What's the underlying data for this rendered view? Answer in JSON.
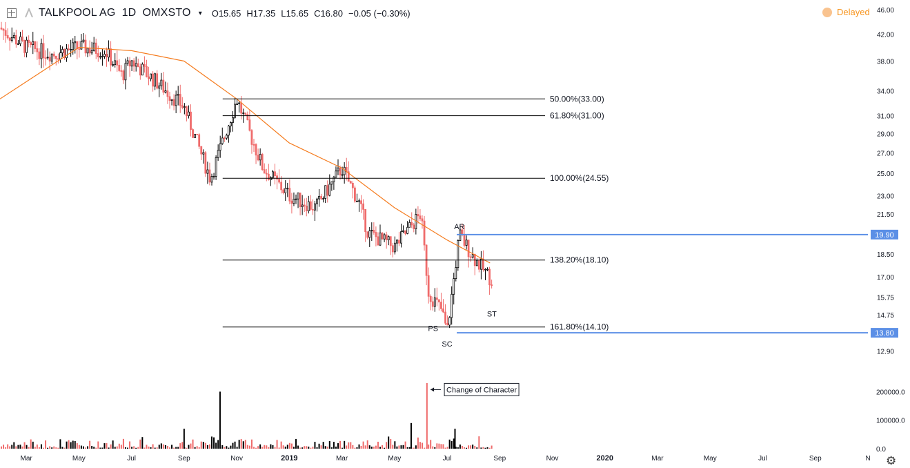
{
  "header": {
    "symbol": "TALKPOOL AG",
    "interval": "1D",
    "exchange": "OMXSTO",
    "open": "O15.65",
    "high": "H17.35",
    "low": "L15.65",
    "close": "C16.80",
    "change": "−0.05 (−0.30%)",
    "delayed_label": "Delayed"
  },
  "icons": {
    "chart_menu": "square-plus-icon",
    "logo": "tradingview-logo-icon",
    "dropdown": "chevron-down-icon",
    "settings": "gear-icon",
    "delayed": "circle-dot-icon"
  },
  "colors": {
    "up": "#000000",
    "down": "#ef6b6b",
    "ma": "#f57c1f",
    "level_line": "#000000",
    "highlight": "#5b8fe6",
    "volume_up": "#000000",
    "volume_down": "#ef6b6b"
  },
  "chart_data": {
    "type": "candlestick",
    "price_axis": {
      "ticks": [
        "46.00",
        "42.00",
        "38.00",
        "34.00",
        "31.00",
        "29.00",
        "27.00",
        "25.00",
        "23.00",
        "21.50",
        "18.50",
        "17.00",
        "15.75",
        "14.75",
        "12.90"
      ],
      "scale": "log"
    },
    "volume_axis": {
      "ticks": [
        "200000.0",
        "100000.0",
        "0.0"
      ]
    },
    "time_axis": {
      "ticks": [
        "Mar",
        "May",
        "Jul",
        "Sep",
        "Nov",
        "2019",
        "Mar",
        "May",
        "Jul",
        "Sep",
        "Nov",
        "2020",
        "Mar",
        "May",
        "Jul",
        "Sep",
        "N"
      ],
      "bold": [
        "2019",
        "2020"
      ]
    },
    "x_range": [
      "2018-02",
      "2020-11"
    ],
    "y_range": [
      12.2,
      46.5
    ],
    "price_path": [
      {
        "date": "2018-02",
        "price": 43.0
      },
      {
        "date": "2018-03",
        "price": 40.0
      },
      {
        "date": "2018-04",
        "price": 39.0
      },
      {
        "date": "2018-05",
        "price": 40.0
      },
      {
        "date": "2018-06",
        "price": 39.5
      },
      {
        "date": "2018-06-20",
        "price": 36.0
      },
      {
        "date": "2018-07",
        "price": 38.0
      },
      {
        "date": "2018-08",
        "price": 35.0
      },
      {
        "date": "2018-09",
        "price": 32.0
      },
      {
        "date": "2018-10",
        "price": 24.5
      },
      {
        "date": "2018-11",
        "price": 33.0
      },
      {
        "date": "2018-12",
        "price": 25.5
      },
      {
        "date": "2019-01",
        "price": 23.0
      },
      {
        "date": "2019-02",
        "price": 22.0
      },
      {
        "date": "2019-03",
        "price": 25.5
      },
      {
        "date": "2019-03-20",
        "price": 22.5
      },
      {
        "date": "2019-04",
        "price": 20.0
      },
      {
        "date": "2019-05",
        "price": 19.0
      },
      {
        "date": "2019-06",
        "price": 21.5
      },
      {
        "date": "2019-06-10",
        "price": 16.0
      },
      {
        "date": "2019-06-25",
        "price": 15.0
      },
      {
        "date": "2019-07",
        "price": 13.8
      },
      {
        "date": "2019-07-15",
        "price": 19.9
      },
      {
        "date": "2019-08",
        "price": 18.3
      },
      {
        "date": "2019-08-22",
        "price": 16.8
      }
    ],
    "moving_average": [
      {
        "date": "2018-02",
        "price": 33.0
      },
      {
        "date": "2018-05",
        "price": 40.0
      },
      {
        "date": "2018-07",
        "price": 39.5
      },
      {
        "date": "2018-09",
        "price": 38.0
      },
      {
        "date": "2018-11",
        "price": 33.0
      },
      {
        "date": "2019-01",
        "price": 28.0
      },
      {
        "date": "2019-03",
        "price": 25.5
      },
      {
        "date": "2019-05",
        "price": 22.0
      },
      {
        "date": "2019-07",
        "price": 19.5
      },
      {
        "date": "2019-08-20",
        "price": 17.9
      }
    ],
    "volume_spikes": [
      {
        "date": "2018-10-12",
        "value": 200000
      },
      {
        "date": "2019-06-08",
        "value": 230000
      },
      {
        "date": "2019-05-20",
        "value": 90000
      },
      {
        "date": "2018-09",
        "value": 70000
      },
      {
        "date": "2019-07-10",
        "value": 70000
      }
    ],
    "fib_levels": [
      {
        "label": "50.00%(33.00)",
        "price": 33.0
      },
      {
        "label": "61.80%(31.00)",
        "price": 31.0
      },
      {
        "label": "100.00%(24.55)",
        "price": 24.55
      },
      {
        "label": "138.20%(18.10)",
        "price": 18.1
      },
      {
        "label": "161.80%(14.10)",
        "price": 14.1
      }
    ],
    "highlight_levels": [
      {
        "label": "19.90",
        "price": 19.9
      },
      {
        "label": "13.80",
        "price": 13.8
      }
    ],
    "annotations": [
      {
        "text": "AR",
        "date": "2019-07-15",
        "price": 19.9
      },
      {
        "text": "PS",
        "date": "2019-06-15",
        "price": 14.4
      },
      {
        "text": "SC",
        "date": "2019-07-01",
        "price": 13.6
      },
      {
        "text": "ST",
        "date": "2019-08-22",
        "price": 15.2
      },
      {
        "text": "Change of Character",
        "date": "2019-07-15",
        "volume": 200000
      }
    ]
  }
}
